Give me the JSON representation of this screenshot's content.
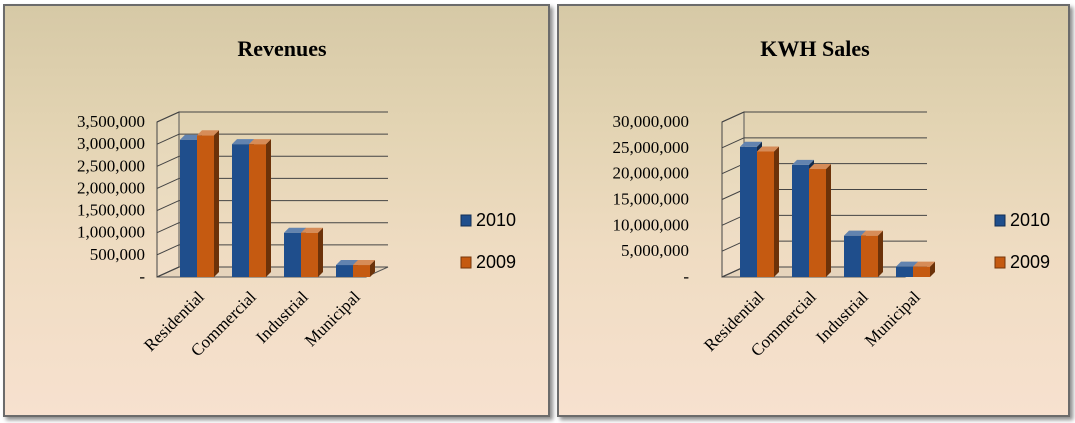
{
  "chart_data": [
    {
      "type": "bar",
      "title": "Revenues",
      "categories": [
        "Residential",
        "Commercial",
        "Industrial",
        "Municipal"
      ],
      "series": [
        {
          "name": "2010",
          "values": [
            3100000,
            3000000,
            1000000,
            270000
          ]
        },
        {
          "name": "2009",
          "values": [
            3200000,
            3000000,
            1000000,
            270000
          ]
        }
      ],
      "yticks": [
        "-",
        "500,000",
        "1,000,000",
        "1,500,000",
        "2,000,000",
        "2,500,000",
        "3,000,000",
        "3,500,000"
      ],
      "ylim": [
        0,
        3500000
      ],
      "grid": true,
      "legend_position": "right",
      "style": "3d-clustered-column"
    },
    {
      "type": "bar",
      "title": "KWH Sales",
      "categories": [
        "Residential",
        "Commercial",
        "Industrial",
        "Municipal"
      ],
      "series": [
        {
          "name": "2010",
          "values": [
            25200000,
            21700000,
            8000000,
            2000000
          ]
        },
        {
          "name": "2009",
          "values": [
            24300000,
            20900000,
            8000000,
            2000000
          ]
        }
      ],
      "yticks": [
        "-",
        "5,000,000",
        "10,000,000",
        "15,000,000",
        "20,000,000",
        "25,000,000",
        "30,000,000"
      ],
      "ylim": [
        0,
        30000000
      ],
      "grid": true,
      "legend_position": "right",
      "style": "3d-clustered-column"
    }
  ],
  "colors": {
    "series_2010": "#1f4e8c",
    "series_2009": "#c55a11"
  }
}
